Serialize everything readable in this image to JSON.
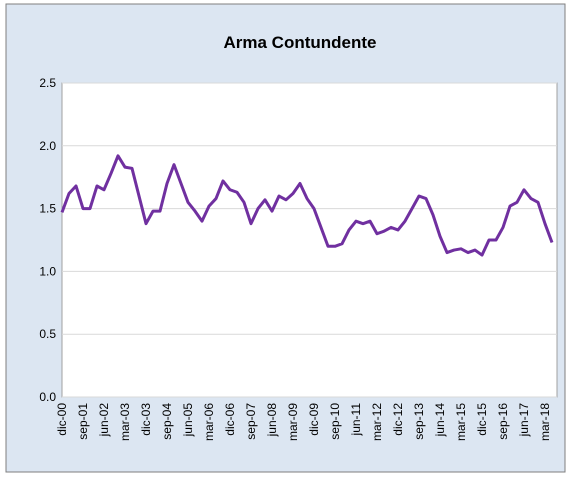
{
  "chart_data": {
    "type": "line",
    "title": "Arma Contundente",
    "categories": [
      "dic-00",
      null,
      null,
      "sep-01",
      null,
      null,
      "jun-02",
      null,
      null,
      "mar-03",
      null,
      null,
      "dic-03",
      null,
      null,
      "sep-04",
      null,
      null,
      "jun-05",
      null,
      null,
      "mar-06",
      null,
      null,
      "dic-06",
      null,
      null,
      "sep-07",
      null,
      null,
      "jun-08",
      null,
      null,
      "mar-09",
      null,
      null,
      "dic-09",
      null,
      null,
      "sep-10",
      null,
      null,
      "jun-11",
      null,
      null,
      "mar-12",
      null,
      null,
      "dic-12",
      null,
      null,
      "sep-13",
      null,
      null,
      "jun-14",
      null,
      null,
      "mar-15",
      null,
      null,
      "dic-15",
      null,
      null,
      "sep-16",
      null,
      null,
      "jun-17",
      null,
      null,
      "mar-18",
      null
    ],
    "series": [
      {
        "color": "#7030a0",
        "values": [
          1.47,
          1.62,
          1.68,
          1.5,
          1.5,
          1.68,
          1.65,
          1.78,
          1.92,
          1.83,
          1.82,
          1.6,
          1.38,
          1.48,
          1.48,
          1.7,
          1.85,
          1.7,
          1.55,
          1.48,
          1.4,
          1.52,
          1.58,
          1.72,
          1.65,
          1.63,
          1.55,
          1.38,
          1.5,
          1.57,
          1.48,
          1.6,
          1.57,
          1.62,
          1.7,
          1.58,
          1.5,
          1.35,
          1.2,
          1.2,
          1.22,
          1.33,
          1.4,
          1.38,
          1.4,
          1.3,
          1.32,
          1.35,
          1.33,
          1.4,
          1.5,
          1.6,
          1.58,
          1.45,
          1.28,
          1.15,
          1.17,
          1.18,
          1.15,
          1.17,
          1.13,
          1.25,
          1.25,
          1.35,
          1.52,
          1.55,
          1.65,
          1.58,
          1.55,
          1.38,
          1.23
        ]
      }
    ],
    "ylim": [
      0,
      2.5
    ],
    "yticks": [
      {
        "value": 0,
        "label": "0.0"
      },
      {
        "value": 0.5,
        "label": "0.5"
      },
      {
        "value": 1,
        "label": "1.0"
      },
      {
        "value": 1.5,
        "label": "1.5"
      },
      {
        "value": 2,
        "label": "2.0"
      },
      {
        "value": 2.5,
        "label": "2.5"
      }
    ],
    "grid": true
  }
}
